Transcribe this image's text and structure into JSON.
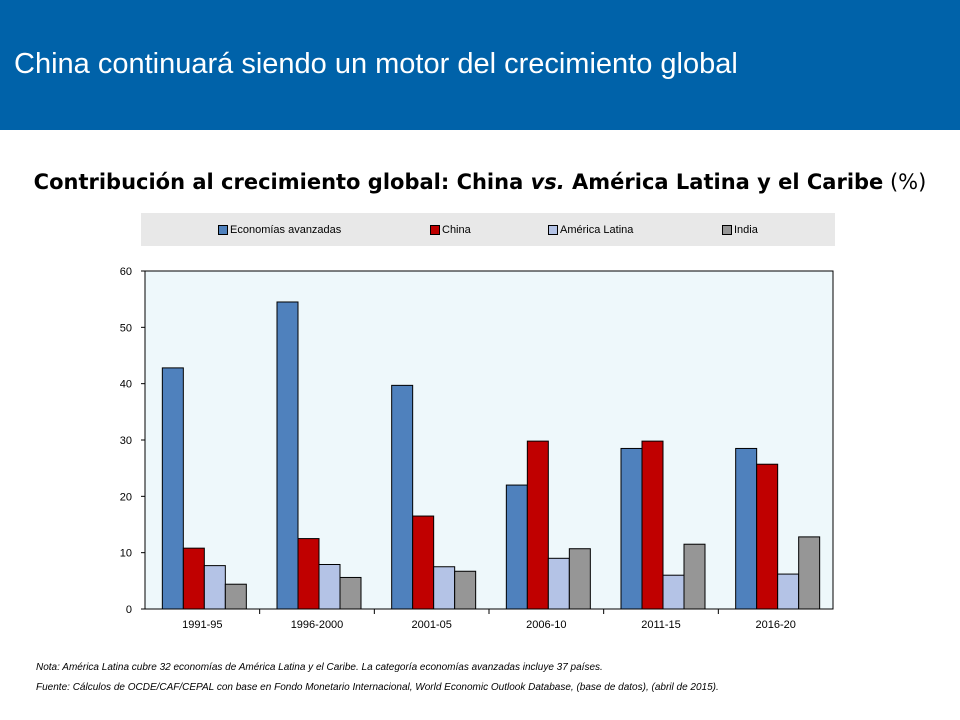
{
  "header": {
    "title": "China continuará siendo un motor del crecimiento global"
  },
  "chart_title": {
    "part1": "Contribución al crecimiento global: China ",
    "part2": "vs.",
    "part3": " América Latina y el Caribe",
    "part4": " (%)"
  },
  "colors": {
    "banner": "#0062a9",
    "economias_avanzadas": "#4f81bd",
    "china": "#c00000",
    "america_latina": "#b4c3e6",
    "india": "#969696",
    "plot_background": "#eef8fb"
  },
  "chart_data": {
    "type": "bar",
    "categories": [
      "1991-95",
      "1996-2000",
      "2001-05",
      "2006-10",
      "2011-15",
      "2016-20"
    ],
    "series": [
      {
        "name": "Economías avanzadas",
        "values": [
          42.8,
          54.5,
          39.7,
          22.0,
          28.5,
          28.5
        ]
      },
      {
        "name": "China",
        "values": [
          10.8,
          12.5,
          16.5,
          29.8,
          29.8,
          25.7
        ]
      },
      {
        "name": "América Latina",
        "values": [
          7.7,
          7.9,
          7.5,
          9.0,
          6.0,
          6.2
        ]
      },
      {
        "name": "India",
        "values": [
          4.4,
          5.6,
          6.7,
          10.7,
          11.5,
          12.8
        ]
      }
    ],
    "ylim": [
      0,
      60
    ],
    "yticks": [
      0,
      10,
      20,
      30,
      40,
      50,
      60
    ],
    "xlabel": "",
    "ylabel": "",
    "grid": false,
    "legend_position": "top"
  },
  "notes": {
    "nota": "Nota: América Latina cubre 32 economías de América Latina y el Caribe. La categoría economías avanzadas incluye 37 países.",
    "fuente": "Fuente: Cálculos de OCDE/CAF/CEPAL con base en Fondo Monetario Internacional, World Economic Outlook Database, (base de datos), (abril de 2015)."
  }
}
